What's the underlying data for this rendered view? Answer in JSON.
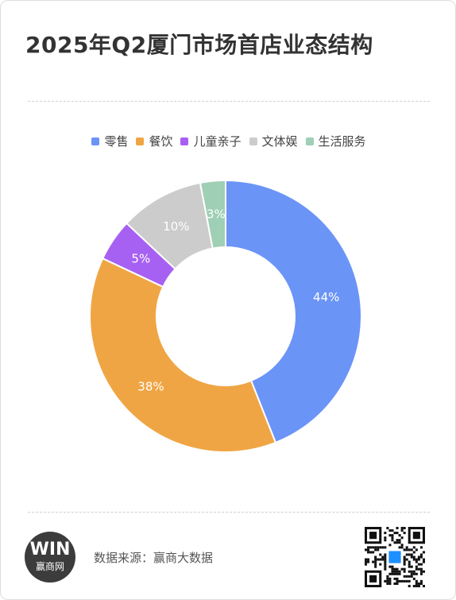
{
  "title": "2025年Q2厦门市场首店业态结构",
  "footer": {
    "source": "数据来源：赢商大数据",
    "logo_mark": "WIN",
    "logo_text": "赢商网"
  },
  "icons": {
    "logo": "winshang-logo-icon",
    "qr": "qr-code-icon"
  },
  "chart_data": {
    "type": "pie",
    "donut": true,
    "categories": [
      "零售",
      "餐饮",
      "儿童亲子",
      "文体娱",
      "生活服务"
    ],
    "values": [
      44,
      38,
      5,
      10,
      3
    ],
    "labels": [
      "44%",
      "38%",
      "5%",
      "10%",
      "3%"
    ],
    "colors": [
      "#6b94f7",
      "#f0a544",
      "#a761f2",
      "#cccccc",
      "#9fcfb4"
    ],
    "legend": "top",
    "start": "12 o'clock",
    "direction": "clockwise"
  }
}
